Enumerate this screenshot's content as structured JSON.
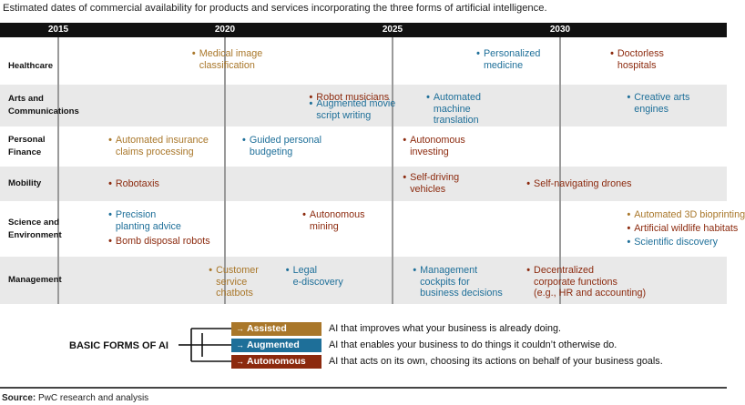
{
  "caption": "Estimated dates of commercial availability for products and services incorporating the three forms of artificial intelligence.",
  "chart_data": {
    "type": "table",
    "years": [
      "2015",
      "2020",
      "2025",
      "2030"
    ],
    "rows": [
      {
        "label": "Healthcare",
        "items": [
          {
            "text": "Medical image classification",
            "form": "assisted",
            "year": 2019
          },
          {
            "text": "Personalized medicine",
            "form": "augmented",
            "year": 2027.5
          },
          {
            "text": "Doctorless hospitals",
            "form": "autonomous",
            "year": 2031.5
          }
        ]
      },
      {
        "label": "Arts and Communications",
        "items": [
          {
            "text": "Robot musicians",
            "form": "autonomous",
            "year": 2022.5
          },
          {
            "text": "Augmented movie script writing",
            "form": "augmented",
            "year": 2022.5
          },
          {
            "text": "Automated machine translation",
            "form": "augmented",
            "year": 2026
          },
          {
            "text": "Creative arts engines",
            "form": "augmented",
            "year": 2032
          }
        ]
      },
      {
        "label": "Personal Finance",
        "items": [
          {
            "text": "Automated insurance claims processing",
            "form": "assisted",
            "year": 2016.5
          },
          {
            "text": "Guided personal budgeting",
            "form": "augmented",
            "year": 2020.5
          },
          {
            "text": "Autonomous investing",
            "form": "autonomous",
            "year": 2025.3
          }
        ]
      },
      {
        "label": "Mobility",
        "items": [
          {
            "text": "Robotaxis",
            "form": "autonomous",
            "year": 2016.5
          },
          {
            "text": "Self-driving vehicles",
            "form": "autonomous",
            "year": 2025.3
          },
          {
            "text": "Self-navigating drones",
            "form": "autonomous",
            "year": 2029
          }
        ]
      },
      {
        "label": "Science and Environment",
        "items": [
          {
            "text": "Precision planting advice",
            "form": "augmented",
            "year": 2016.5
          },
          {
            "text": "Bomb disposal robots",
            "form": "autonomous",
            "year": 2016.5
          },
          {
            "text": "Autonomous mining",
            "form": "autonomous",
            "year": 2022.3
          },
          {
            "text": "Automated 3D bioprinting",
            "form": "assisted",
            "year": 2032
          },
          {
            "text": "Artificial wildlife habitats",
            "form": "autonomous",
            "year": 2032
          },
          {
            "text": "Scientific discovery",
            "form": "augmented",
            "year": 2032
          }
        ]
      },
      {
        "label": "Management",
        "items": [
          {
            "text": "Customer service chatbots",
            "form": "assisted",
            "year": 2019.5
          },
          {
            "text": "Legal e-discovery",
            "form": "augmented",
            "year": 2021.8
          },
          {
            "text": "Management cockpits for business decisions",
            "form": "augmented",
            "year": 2025.6
          },
          {
            "text": "Decentralized corporate functions (e.g., HR and accounting)",
            "form": "autonomous",
            "year": 2029
          }
        ]
      }
    ]
  },
  "legend": {
    "title": "BASIC FORMS OF AI",
    "forms": [
      {
        "key": "assisted",
        "label": "Assisted",
        "color": "#a9772a",
        "description": "AI that improves what your business is already doing."
      },
      {
        "key": "augmented",
        "label": "Augmented",
        "color": "#1e6f99",
        "description": "AI that enables your business to do things it couldn’t otherwise do."
      },
      {
        "key": "autonomous",
        "label": "Autonomous",
        "color": "#8c2a0e",
        "description": "AI that acts on its own, choosing its actions on behalf of your business goals."
      }
    ]
  },
  "source": {
    "label": "Source:",
    "text": "PwC research and analysis"
  },
  "colors": {
    "band_light": "#e9e9e9",
    "band_white": "#ffffff",
    "header": "#111111",
    "gridline": "#9a9a9a"
  }
}
